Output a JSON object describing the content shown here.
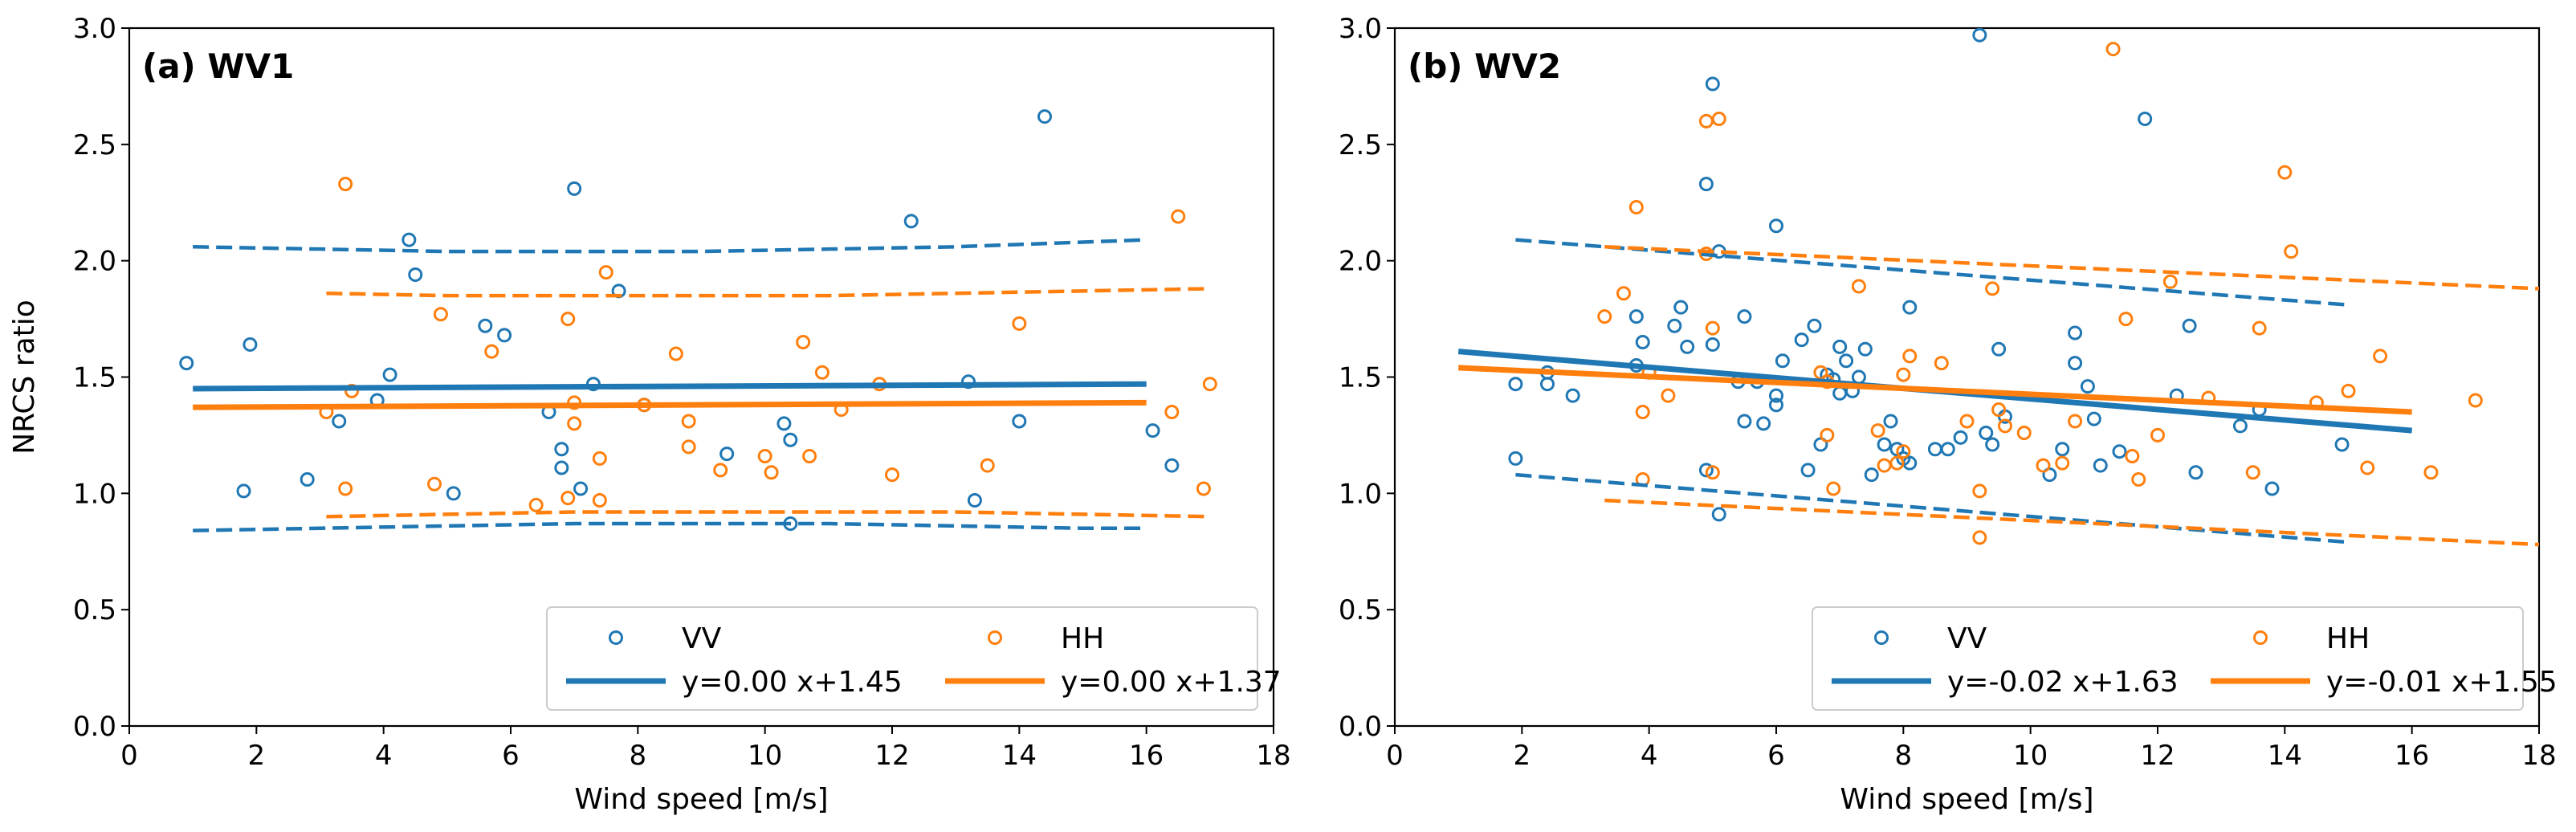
{
  "colors": {
    "vv": "#1f77b4",
    "hh": "#ff7f0e"
  },
  "chart_data": [
    {
      "type": "scatter",
      "title": "(a) WV1",
      "xlabel": "Wind speed [m/s]",
      "ylabel": "NRCS ratio",
      "xlim": [
        0,
        18
      ],
      "ylim": [
        0,
        3.0
      ],
      "xticks": [
        "0",
        "2",
        "4",
        "6",
        "8",
        "10",
        "12",
        "14",
        "16",
        "18"
      ],
      "yticks": [
        "0.0",
        "0.5",
        "1.0",
        "1.5",
        "2.0",
        "2.5",
        "3.0"
      ],
      "grid": false,
      "legend_position": "bottom-right",
      "series": [
        {
          "name": "VV",
          "color_key": "vv",
          "points": [
            [
              0.9,
              1.56
            ],
            [
              1.8,
              1.01
            ],
            [
              1.9,
              1.64
            ],
            [
              2.8,
              1.06
            ],
            [
              3.3,
              1.31
            ],
            [
              3.9,
              1.4
            ],
            [
              4.1,
              1.51
            ],
            [
              4.4,
              2.09
            ],
            [
              4.5,
              1.94
            ],
            [
              5.1,
              1.0
            ],
            [
              5.6,
              1.72
            ],
            [
              5.9,
              1.68
            ],
            [
              6.6,
              1.35
            ],
            [
              6.8,
              1.11
            ],
            [
              6.8,
              1.19
            ],
            [
              7.0,
              2.31
            ],
            [
              7.1,
              1.02
            ],
            [
              7.3,
              1.47
            ],
            [
              7.7,
              1.87
            ],
            [
              8.1,
              1.38
            ],
            [
              9.4,
              1.17
            ],
            [
              10.3,
              1.3
            ],
            [
              10.4,
              1.23
            ],
            [
              10.4,
              0.87
            ],
            [
              12.3,
              2.17
            ],
            [
              13.2,
              1.48
            ],
            [
              13.3,
              0.97
            ],
            [
              14.0,
              1.31
            ],
            [
              14.4,
              2.62
            ],
            [
              16.1,
              1.27
            ],
            [
              16.4,
              1.12
            ]
          ]
        },
        {
          "name": "HH",
          "color_key": "hh",
          "points": [
            [
              3.1,
              1.35
            ],
            [
              3.4,
              1.02
            ],
            [
              3.4,
              2.33
            ],
            [
              3.5,
              1.44
            ],
            [
              4.8,
              1.04
            ],
            [
              4.9,
              1.77
            ],
            [
              5.7,
              1.61
            ],
            [
              6.4,
              0.95
            ],
            [
              6.9,
              1.75
            ],
            [
              6.9,
              0.98
            ],
            [
              7.0,
              1.39
            ],
            [
              7.0,
              1.3
            ],
            [
              7.4,
              1.15
            ],
            [
              7.4,
              0.97
            ],
            [
              7.5,
              1.95
            ],
            [
              8.1,
              1.38
            ],
            [
              8.6,
              1.6
            ],
            [
              8.8,
              1.31
            ],
            [
              8.8,
              1.2
            ],
            [
              9.3,
              1.1
            ],
            [
              10.0,
              1.16
            ],
            [
              10.1,
              1.09
            ],
            [
              10.6,
              1.65
            ],
            [
              10.7,
              1.16
            ],
            [
              10.9,
              1.52
            ],
            [
              11.2,
              1.36
            ],
            [
              11.8,
              1.47
            ],
            [
              12.0,
              1.08
            ],
            [
              13.5,
              1.12
            ],
            [
              14.0,
              1.73
            ],
            [
              16.4,
              1.35
            ],
            [
              16.5,
              2.19
            ],
            [
              16.9,
              1.02
            ],
            [
              17.0,
              1.47
            ]
          ]
        },
        {
          "name": "y=0.00 x+1.45",
          "color_key": "vv",
          "kind": "fit",
          "x": [
            1.0,
            16.0
          ],
          "y": [
            1.45,
            1.47
          ]
        },
        {
          "name": "y=0.00 x+1.37",
          "color_key": "hh",
          "kind": "fit",
          "x": [
            1.0,
            16.0
          ],
          "y": [
            1.37,
            1.39
          ]
        },
        {
          "color_key": "vv",
          "kind": "bound",
          "x": [
            1,
            3,
            5,
            7,
            9,
            11,
            13,
            15,
            16
          ],
          "y": [
            2.06,
            2.05,
            2.04,
            2.04,
            2.04,
            2.05,
            2.06,
            2.08,
            2.09
          ]
        },
        {
          "color_key": "vv",
          "kind": "bound",
          "x": [
            1,
            3,
            5,
            7,
            9,
            11,
            13,
            15,
            16
          ],
          "y": [
            0.84,
            0.85,
            0.86,
            0.87,
            0.87,
            0.87,
            0.86,
            0.85,
            0.85
          ]
        },
        {
          "color_key": "hh",
          "kind": "bound",
          "x": [
            3.1,
            5,
            7,
            9,
            11,
            13,
            15,
            17
          ],
          "y": [
            1.86,
            1.85,
            1.85,
            1.85,
            1.85,
            1.86,
            1.87,
            1.88
          ]
        },
        {
          "color_key": "hh",
          "kind": "bound",
          "x": [
            3.1,
            5,
            7,
            9,
            11,
            13,
            15,
            17
          ],
          "y": [
            0.9,
            0.91,
            0.92,
            0.92,
            0.92,
            0.92,
            0.91,
            0.9
          ]
        }
      ],
      "legend": [
        {
          "label": "VV",
          "color_key": "vv",
          "marker": "circle"
        },
        {
          "label": "HH",
          "color_key": "hh",
          "marker": "circle"
        },
        {
          "label": "y=0.00 x+1.45",
          "color_key": "vv",
          "marker": "line"
        },
        {
          "label": "y=0.00 x+1.37",
          "color_key": "hh",
          "marker": "line"
        }
      ]
    },
    {
      "type": "scatter",
      "title": "(b) WV2",
      "xlabel": "Wind speed [m/s]",
      "ylabel": "",
      "xlim": [
        0,
        18
      ],
      "ylim": [
        0,
        3.0
      ],
      "xticks": [
        "0",
        "2",
        "4",
        "6",
        "8",
        "10",
        "12",
        "14",
        "16",
        "18"
      ],
      "yticks": [
        "0.0",
        "0.5",
        "1.0",
        "1.5",
        "2.0",
        "2.5",
        "3.0"
      ],
      "grid": false,
      "legend_position": "bottom-right",
      "series": [
        {
          "name": "VV",
          "color_key": "vv",
          "points": [
            [
              1.9,
              1.47
            ],
            [
              1.9,
              1.15
            ],
            [
              2.4,
              1.47
            ],
            [
              2.4,
              1.52
            ],
            [
              2.8,
              1.42
            ],
            [
              3.8,
              1.76
            ],
            [
              3.8,
              1.55
            ],
            [
              3.9,
              1.65
            ],
            [
              4.4,
              1.72
            ],
            [
              4.5,
              1.8
            ],
            [
              4.6,
              1.63
            ],
            [
              4.9,
              1.1
            ],
            [
              4.9,
              2.33
            ],
            [
              5.0,
              2.76
            ],
            [
              5.0,
              1.64
            ],
            [
              5.1,
              0.91
            ],
            [
              5.1,
              2.04
            ],
            [
              5.4,
              1.48
            ],
            [
              5.5,
              1.76
            ],
            [
              5.5,
              1.31
            ],
            [
              5.7,
              1.48
            ],
            [
              5.8,
              1.3
            ],
            [
              6.0,
              1.42
            ],
            [
              6.0,
              1.38
            ],
            [
              6.0,
              2.15
            ],
            [
              6.1,
              1.57
            ],
            [
              6.4,
              1.66
            ],
            [
              6.5,
              1.1
            ],
            [
              6.6,
              1.72
            ],
            [
              6.7,
              1.21
            ],
            [
              6.8,
              1.51
            ],
            [
              6.9,
              1.49
            ],
            [
              7.0,
              1.63
            ],
            [
              7.0,
              1.43
            ],
            [
              7.1,
              1.57
            ],
            [
              7.2,
              1.44
            ],
            [
              7.3,
              1.5
            ],
            [
              7.4,
              1.62
            ],
            [
              7.5,
              1.08
            ],
            [
              7.7,
              1.21
            ],
            [
              7.8,
              1.31
            ],
            [
              7.9,
              1.19
            ],
            [
              8.0,
              1.15
            ],
            [
              8.1,
              1.13
            ],
            [
              8.1,
              1.8
            ],
            [
              8.5,
              1.19
            ],
            [
              8.7,
              1.19
            ],
            [
              8.9,
              1.24
            ],
            [
              9.2,
              2.97
            ],
            [
              9.3,
              1.26
            ],
            [
              9.4,
              1.21
            ],
            [
              9.5,
              1.62
            ],
            [
              9.6,
              1.33
            ],
            [
              10.3,
              1.08
            ],
            [
              10.5,
              1.19
            ],
            [
              10.7,
              1.56
            ],
            [
              10.7,
              1.69
            ],
            [
              10.9,
              1.46
            ],
            [
              11.0,
              1.32
            ],
            [
              11.1,
              1.12
            ],
            [
              11.4,
              1.18
            ],
            [
              11.8,
              2.61
            ],
            [
              12.3,
              1.42
            ],
            [
              12.5,
              1.72
            ],
            [
              12.6,
              1.09
            ],
            [
              13.3,
              1.29
            ],
            [
              13.6,
              1.36
            ],
            [
              13.8,
              1.02
            ],
            [
              14.9,
              1.21
            ]
          ]
        },
        {
          "name": "HH",
          "color_key": "hh",
          "points": [
            [
              3.3,
              1.76
            ],
            [
              3.6,
              1.86
            ],
            [
              3.8,
              2.23
            ],
            [
              3.9,
              1.35
            ],
            [
              3.9,
              1.06
            ],
            [
              4.0,
              1.52
            ],
            [
              4.3,
              1.42
            ],
            [
              4.9,
              2.6
            ],
            [
              4.9,
              2.03
            ],
            [
              5.0,
              1.09
            ],
            [
              5.0,
              1.71
            ],
            [
              5.1,
              2.61
            ],
            [
              6.7,
              1.52
            ],
            [
              6.8,
              1.25
            ],
            [
              6.8,
              1.48
            ],
            [
              6.9,
              1.02
            ],
            [
              7.3,
              1.89
            ],
            [
              7.6,
              1.27
            ],
            [
              7.7,
              1.12
            ],
            [
              7.9,
              1.13
            ],
            [
              8.0,
              1.18
            ],
            [
              8.0,
              1.51
            ],
            [
              8.1,
              1.59
            ],
            [
              8.6,
              1.56
            ],
            [
              9.0,
              1.31
            ],
            [
              9.2,
              0.81
            ],
            [
              9.2,
              1.01
            ],
            [
              9.4,
              1.88
            ],
            [
              9.5,
              1.36
            ],
            [
              9.6,
              1.29
            ],
            [
              9.9,
              1.26
            ],
            [
              10.2,
              1.12
            ],
            [
              10.5,
              1.13
            ],
            [
              10.7,
              1.31
            ],
            [
              11.3,
              2.91
            ],
            [
              11.5,
              1.75
            ],
            [
              11.6,
              1.16
            ],
            [
              11.7,
              1.06
            ],
            [
              12.0,
              1.25
            ],
            [
              12.2,
              1.91
            ],
            [
              12.8,
              1.41
            ],
            [
              13.5,
              1.09
            ],
            [
              13.6,
              1.71
            ],
            [
              14.0,
              2.38
            ],
            [
              14.1,
              2.04
            ],
            [
              14.5,
              1.39
            ],
            [
              15.0,
              1.44
            ],
            [
              15.3,
              1.11
            ],
            [
              15.5,
              1.59
            ],
            [
              16.3,
              1.09
            ],
            [
              17.0,
              1.4
            ]
          ]
        },
        {
          "name": "y=-0.02 x+1.63",
          "color_key": "vv",
          "kind": "fit",
          "x": [
            1.0,
            16.0
          ],
          "y": [
            1.61,
            1.27
          ]
        },
        {
          "name": "y=-0.01 x+1.55",
          "color_key": "hh",
          "kind": "fit",
          "x": [
            1.0,
            16.0
          ],
          "y": [
            1.54,
            1.35
          ]
        },
        {
          "color_key": "vv",
          "kind": "bound",
          "x": [
            1.9,
            15.0
          ],
          "y": [
            2.09,
            1.81
          ]
        },
        {
          "color_key": "vv",
          "kind": "bound",
          "x": [
            1.9,
            15.0
          ],
          "y": [
            1.08,
            0.79
          ]
        },
        {
          "color_key": "hh",
          "kind": "bound",
          "x": [
            3.3,
            18.0
          ],
          "y": [
            2.06,
            1.88
          ]
        },
        {
          "color_key": "hh",
          "kind": "bound",
          "x": [
            3.3,
            18.0
          ],
          "y": [
            0.97,
            0.78
          ]
        }
      ],
      "legend": [
        {
          "label": "VV",
          "color_key": "vv",
          "marker": "circle"
        },
        {
          "label": "HH",
          "color_key": "hh",
          "marker": "circle"
        },
        {
          "label": "y=-0.02 x+1.63",
          "color_key": "vv",
          "marker": "line"
        },
        {
          "label": "y=-0.01 x+1.55",
          "color_key": "hh",
          "marker": "line"
        }
      ]
    }
  ]
}
